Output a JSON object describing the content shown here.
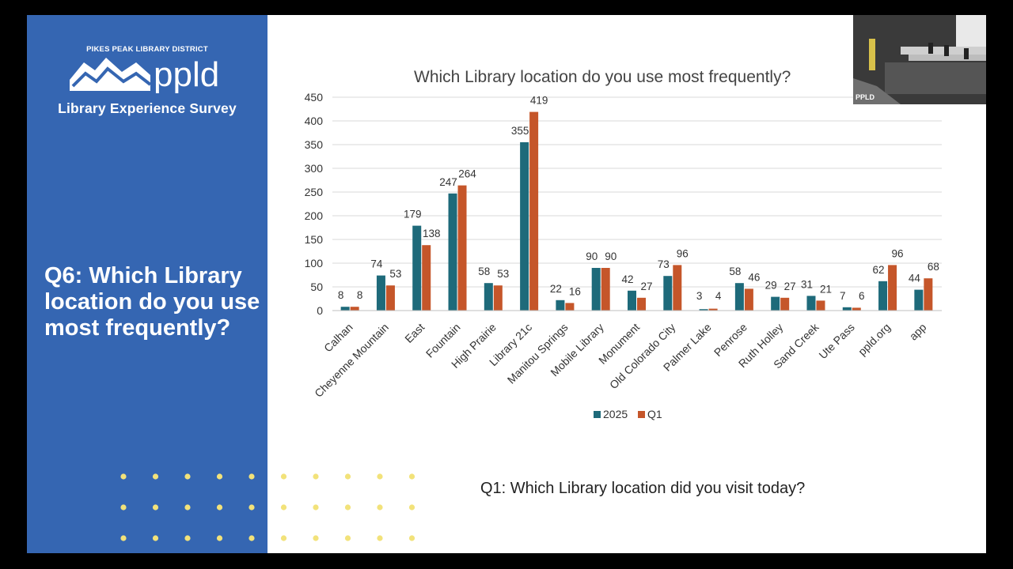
{
  "left_panel": {
    "district_name": "PIKES PEAK LIBRARY DISTRICT",
    "logo_text": "ppld",
    "survey_title": "Library Experience Survey",
    "question_title": "Q6: Which Library location do you use most frequently?",
    "panel_color": "#3566b2",
    "dot_color": "#f2e27a"
  },
  "subtitle": "Q1: Which Library location did you visit today?",
  "video_inset": {
    "label": "PPLD"
  },
  "chart_data": {
    "type": "bar",
    "title": "Which Library location do you use most frequently?",
    "categories": [
      "Calhan",
      "Cheyenne Mountain",
      "East",
      "Fountain",
      "High Prairie",
      "Library 21c",
      "Manitou Springs",
      "Mobile Library",
      "Monument",
      "Old Colorado City",
      "Palmer Lake",
      "Penrose",
      "Ruth Holley",
      "Sand Creek",
      "Ute Pass",
      "ppld.org",
      "app"
    ],
    "series": [
      {
        "name": "2025",
        "color": "#1e6a7a",
        "values": [
          8,
          74,
          179,
          247,
          58,
          355,
          22,
          90,
          42,
          73,
          3,
          58,
          29,
          31,
          7,
          62,
          44
        ]
      },
      {
        "name": "Q1",
        "color": "#c5562a",
        "values": [
          8,
          53,
          138,
          264,
          53,
          419,
          16,
          90,
          27,
          96,
          4,
          46,
          27,
          21,
          6,
          96,
          68
        ]
      }
    ],
    "yticks": [
      "0",
      "50",
      "100",
      "150",
      "200",
      "250",
      "300",
      "350",
      "400",
      "450"
    ],
    "ylim": [
      0,
      450
    ],
    "grid": true,
    "legend": "bottom"
  }
}
